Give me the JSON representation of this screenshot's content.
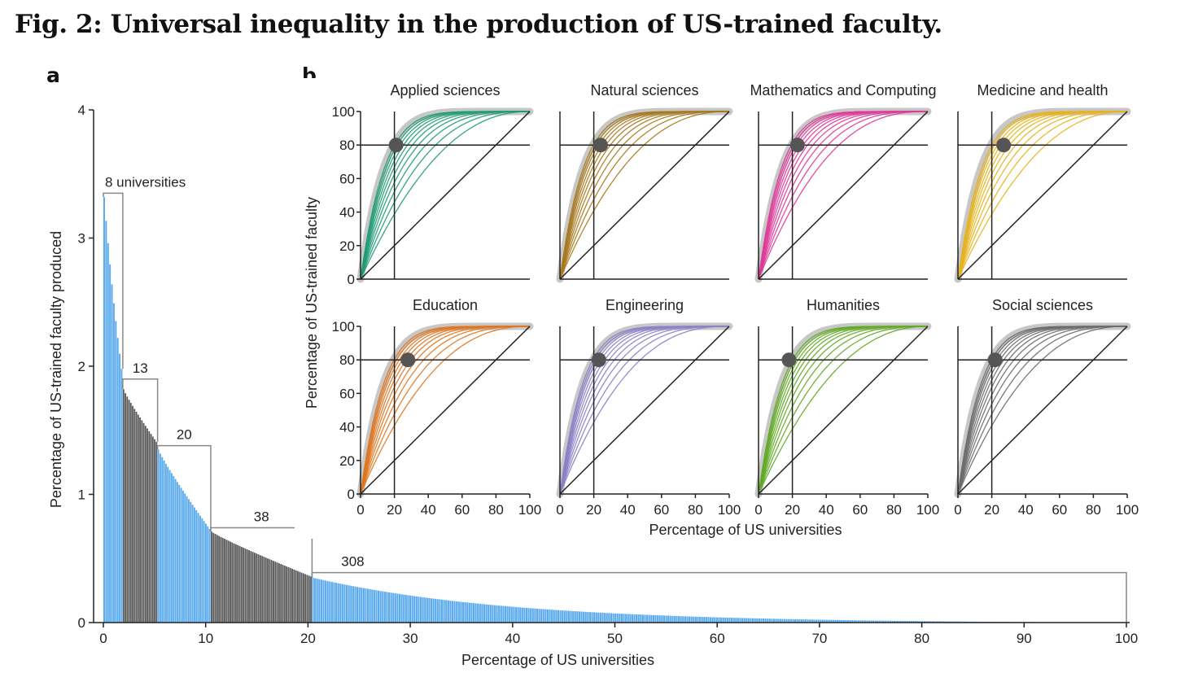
{
  "figure_title": "Fig. 2: Universal inequality in the production of US-trained faculty.",
  "panel_a_letter": "a",
  "panel_b_letter": "b",
  "colors": {
    "blue": "#5aaaf0",
    "dark": "#5a5a5a",
    "bracket": "#888888",
    "axis": "#222222",
    "reference_thick": "#bdbdbd",
    "marker": "#555555"
  },
  "chart_data": [
    {
      "type": "bar",
      "panel": "a",
      "xlabel": "Percentage of US universities",
      "ylabel": "Percentage of US-trained faculty produced",
      "xlim": [
        0,
        100
      ],
      "ylim": [
        0,
        4
      ],
      "x_ticks": [
        0,
        10,
        20,
        30,
        40,
        50,
        60,
        70,
        80,
        90,
        100
      ],
      "y_ticks": [
        0,
        1,
        2,
        3,
        4
      ],
      "groups": [
        {
          "label": "8 universities",
          "x_start": 0.0,
          "x_end": 1.9,
          "color": "blue",
          "start_value": 3.32,
          "end_value": 1.98
        },
        {
          "label": "13",
          "x_start": 1.9,
          "x_end": 5.3,
          "color": "dark",
          "start_value": 1.82,
          "end_value": 1.41
        },
        {
          "label": "20",
          "x_start": 5.3,
          "x_end": 10.5,
          "color": "blue",
          "start_value": 1.35,
          "end_value": 0.73
        },
        {
          "label": "38",
          "x_start": 10.5,
          "x_end": 20.4,
          "color": "dark",
          "start_value": 0.71,
          "end_value": 0.36
        },
        {
          "label": "308",
          "x_start": 20.4,
          "x_end": 100.0,
          "color": "blue",
          "start_value": 0.35,
          "end_value": 0.0
        }
      ],
      "bracket_heights": [
        3.35,
        1.9,
        1.38,
        0.74,
        0.39
      ]
    },
    {
      "type": "line",
      "panel": "b",
      "xlabel": "Percentage of US universities",
      "ylabel": "Percentage of US-trained faculty",
      "xlim": [
        0,
        100
      ],
      "ylim": [
        0,
        100
      ],
      "x_ticks": [
        0,
        20,
        40,
        60,
        80,
        100
      ],
      "y_ticks": [
        0,
        20,
        40,
        60,
        80,
        100
      ],
      "reference_lines": {
        "horizontal_y": 80,
        "vertical_x": 20
      },
      "panels": [
        {
          "title": "Applied sciences",
          "color": "#1e9b74",
          "marker_x": 21,
          "marker_y": 80
        },
        {
          "title": "Natural sciences",
          "color": "#a8781a",
          "marker_x": 24,
          "marker_y": 80
        },
        {
          "title": "Mathematics and Computing",
          "color": "#e0399a",
          "marker_x": 23,
          "marker_y": 80
        },
        {
          "title": "Medicine and health",
          "color": "#e8b21a",
          "marker_x": 27,
          "marker_y": 80
        },
        {
          "title": "Education",
          "color": "#e0741e",
          "marker_x": 28,
          "marker_y": 80
        },
        {
          "title": "Engineering",
          "color": "#8a80c8",
          "marker_x": 23,
          "marker_y": 80
        },
        {
          "title": "Humanities",
          "color": "#62aa22",
          "marker_x": 18,
          "marker_y": 80
        },
        {
          "title": "Social sciences",
          "color": "#6a6a6a",
          "marker_x": 22,
          "marker_y": 80
        }
      ]
    }
  ]
}
